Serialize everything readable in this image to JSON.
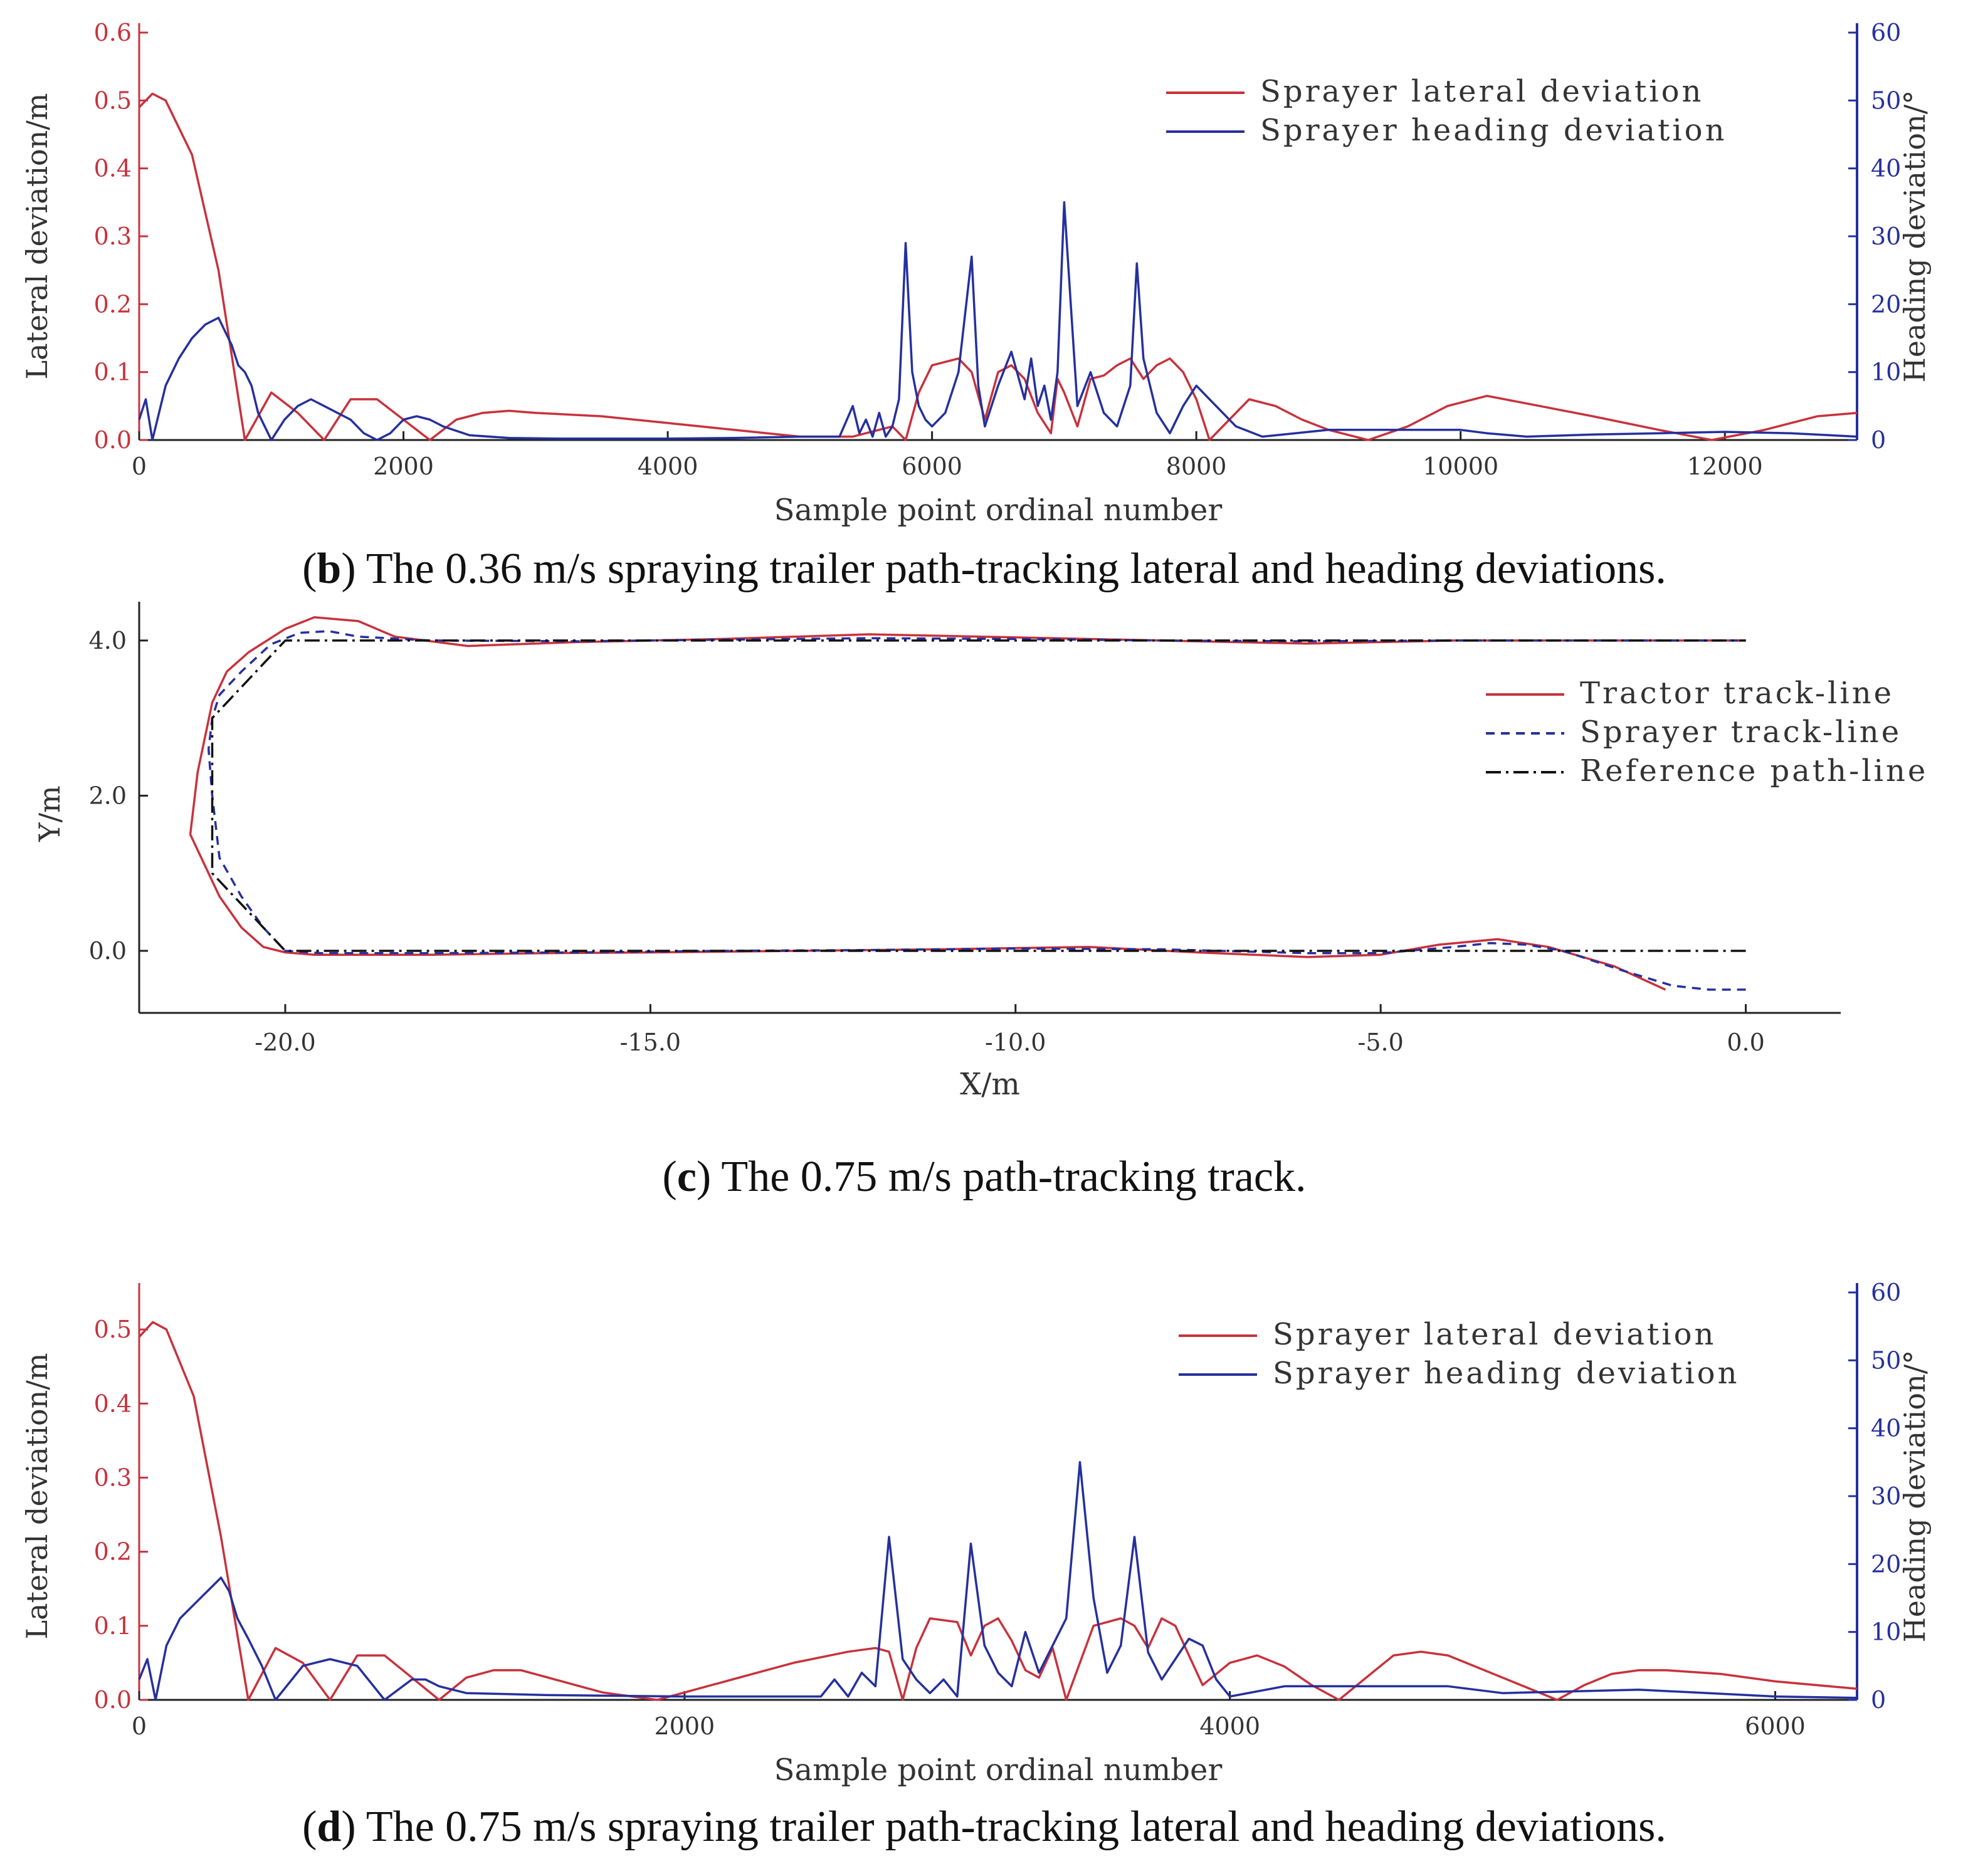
{
  "colors": {
    "lateral": "#c8323c",
    "heading": "#25309e",
    "axis_left": "#c8323c",
    "axis_right": "#25309e",
    "reference": "#111111",
    "text": "#333333"
  },
  "captions": {
    "b": {
      "letter": "b",
      "text": ") The 0.36 m/s spraying trailer path-tracking lateral and heading deviations."
    },
    "c": {
      "letter": "c",
      "text": ") The 0.75 m/s path-tracking track."
    },
    "d": {
      "letter": "d",
      "text": ") The 0.75 m/s spraying trailer path-tracking lateral and heading deviations."
    }
  },
  "chart_data": [
    {
      "id": "b",
      "type": "line",
      "xlabel": "Sample point ordinal number",
      "ylabel_left": "Lateral deviation/m",
      "ylabel_right": "Heading deviation/°",
      "xlim": [
        0,
        13000
      ],
      "xticks": [
        0,
        2000,
        4000,
        6000,
        8000,
        10000,
        12000
      ],
      "ylim_left": [
        0,
        0.6
      ],
      "yticks_left": [
        "0.0",
        "0.1",
        "0.2",
        "0.3",
        "0.4",
        "0.5",
        "0.6"
      ],
      "ylim_right": [
        0,
        60
      ],
      "yticks_right": [
        "0",
        "10",
        "20",
        "30",
        "40",
        "50",
        "60"
      ],
      "legend": [
        "Sprayer lateral deviation",
        "Sprayer heading deviation"
      ],
      "series": [
        {
          "name": "Sprayer lateral deviation",
          "axis": "left",
          "x": [
            0,
            100,
            200,
            400,
            600,
            800,
            1000,
            1200,
            1400,
            1600,
            1800,
            2000,
            2200,
            2400,
            2600,
            2800,
            3000,
            3500,
            4000,
            4500,
            5000,
            5400,
            5700,
            5800,
            5900,
            6000,
            6200,
            6300,
            6400,
            6500,
            6600,
            6700,
            6800,
            6900,
            6950,
            7000,
            7100,
            7200,
            7300,
            7400,
            7500,
            7600,
            7700,
            7800,
            7900,
            8000,
            8100,
            8250,
            8400,
            8600,
            8800,
            9000,
            9300,
            9600,
            9900,
            10200,
            10600,
            11000,
            11500,
            11900,
            12300,
            12700,
            13000
          ],
          "y": [
            0.49,
            0.51,
            0.5,
            0.42,
            0.25,
            0.0,
            0.07,
            0.04,
            0.0,
            0.06,
            0.06,
            0.03,
            0.0,
            0.03,
            0.04,
            0.043,
            0.04,
            0.035,
            0.025,
            0.015,
            0.005,
            0.005,
            0.02,
            0.0,
            0.07,
            0.11,
            0.12,
            0.1,
            0.03,
            0.1,
            0.11,
            0.09,
            0.04,
            0.01,
            0.09,
            0.07,
            0.02,
            0.09,
            0.095,
            0.11,
            0.12,
            0.09,
            0.11,
            0.12,
            0.1,
            0.06,
            0.0,
            0.03,
            0.06,
            0.05,
            0.03,
            0.015,
            0.0,
            0.02,
            0.05,
            0.065,
            0.05,
            0.035,
            0.015,
            0.0,
            0.015,
            0.035,
            0.04
          ]
        },
        {
          "name": "Sprayer heading deviation",
          "axis": "right",
          "x": [
            0,
            50,
            100,
            200,
            300,
            400,
            500,
            600,
            650,
            700,
            750,
            800,
            850,
            900,
            1000,
            1100,
            1200,
            1300,
            1400,
            1500,
            1600,
            1700,
            1800,
            1900,
            2000,
            2100,
            2200,
            2300,
            2500,
            2800,
            3200,
            3600,
            4000,
            4500,
            5000,
            5300,
            5400,
            5450,
            5500,
            5550,
            5600,
            5650,
            5700,
            5750,
            5800,
            5850,
            5900,
            5950,
            6000,
            6100,
            6200,
            6300,
            6350,
            6400,
            6500,
            6600,
            6700,
            6750,
            6800,
            6850,
            6900,
            6950,
            7000,
            7050,
            7100,
            7200,
            7300,
            7400,
            7500,
            7550,
            7600,
            7700,
            7800,
            7900,
            8000,
            8100,
            8300,
            8500,
            9000,
            9500,
            10000,
            10200,
            10500,
            11000,
            11500,
            12000,
            12500,
            13000
          ],
          "y": [
            3,
            6,
            0,
            8,
            12,
            15,
            17,
            18,
            16,
            14,
            11,
            10,
            8,
            4,
            0,
            3,
            5,
            6,
            5,
            4,
            3,
            1,
            0,
            1,
            3,
            3.5,
            3,
            2,
            0.7,
            0.3,
            0.2,
            0.2,
            0.2,
            0.3,
            0.5,
            0.5,
            5,
            1,
            3,
            0.5,
            4,
            0.5,
            2,
            6,
            29,
            10,
            5,
            3,
            2,
            4,
            10,
            27,
            8,
            2,
            8,
            13,
            6,
            12,
            5,
            8,
            3,
            10,
            35,
            20,
            5,
            10,
            4,
            2,
            8,
            26,
            12,
            4,
            1,
            5,
            8,
            6,
            2,
            0.5,
            1.5,
            1.5,
            1.5,
            1,
            0.5,
            0.8,
            1,
            1.2,
            1,
            0.5
          ]
        }
      ]
    },
    {
      "id": "c",
      "type": "line",
      "xlabel": "X/m",
      "ylabel": "Y/m",
      "xlim": [
        -22,
        1.3
      ],
      "xticks": [
        "-20.0",
        "-15.0",
        "-10.0",
        "-5.0",
        "0.0"
      ],
      "ylim": [
        -0.8,
        4.5
      ],
      "yticks": [
        "0.0",
        "2.0",
        "4.0"
      ],
      "legend": [
        "Tractor track-line",
        "Sprayer track-line",
        "Reference path-line"
      ],
      "series": [
        {
          "name": "Tractor track-line",
          "x": [
            -1.1,
            -1.8,
            -2.7,
            -3.4,
            -4.2,
            -5.0,
            -6.0,
            -7.5,
            -9.0,
            -11.0,
            -13.0,
            -15.0,
            -16.5,
            -18.0,
            -19.0,
            -19.6,
            -20.0,
            -20.3,
            -20.6,
            -20.9,
            -21.1,
            -21.3,
            -21.2,
            -21.0,
            -20.8,
            -20.5,
            -20.0,
            -19.6,
            -19.0,
            -18.5,
            -17.5,
            -16.0,
            -14.0,
            -12.0,
            -10.0,
            -8.0,
            -6.0,
            -4.0,
            -2.0,
            0.0
          ],
          "y": [
            -0.5,
            -0.2,
            0.05,
            0.15,
            0.08,
            -0.05,
            -0.08,
            -0.02,
            0.05,
            0.02,
            0.0,
            -0.02,
            -0.03,
            -0.05,
            -0.05,
            -0.05,
            -0.02,
            0.05,
            0.3,
            0.7,
            1.1,
            1.5,
            2.3,
            3.2,
            3.6,
            3.85,
            4.15,
            4.3,
            4.25,
            4.05,
            3.93,
            3.98,
            4.02,
            4.08,
            4.04,
            4.0,
            3.96,
            4.0,
            4.0,
            4.0
          ]
        },
        {
          "name": "Sprayer track-line",
          "x": [
            0.0,
            -0.5,
            -1.0,
            -1.7,
            -2.5,
            -3.0,
            -3.5,
            -4.0,
            -5.0,
            -6.0,
            -8.0,
            -10.0,
            -12.0,
            -14.0,
            -16.0,
            -18.0,
            -19.5,
            -20.0,
            -20.3,
            -20.6,
            -20.9,
            -21.0,
            -21.05,
            -21.0,
            -20.9,
            -20.6,
            -20.2,
            -19.8,
            -19.4,
            -19.0,
            -18.0,
            -16.0,
            -14.0,
            -12.0,
            -10.0,
            -8.0,
            -6.0,
            -4.0,
            -2.0,
            0.0
          ],
          "y": [
            -0.5,
            -0.5,
            -0.45,
            -0.25,
            0.0,
            0.08,
            0.1,
            0.05,
            -0.03,
            -0.03,
            0.02,
            0.03,
            0.01,
            0.0,
            -0.02,
            -0.03,
            -0.03,
            0.0,
            0.3,
            0.7,
            1.2,
            2.0,
            2.6,
            3.0,
            3.3,
            3.6,
            3.95,
            4.1,
            4.12,
            4.05,
            4.0,
            3.99,
            4.01,
            4.03,
            4.02,
            4.0,
            3.99,
            4.0,
            4.0,
            4.0
          ]
        },
        {
          "name": "Reference path-line",
          "x": [
            0.0,
            -20.0,
            -21.0,
            -21.0,
            -20.0,
            0.0
          ],
          "y": [
            0.0,
            0.0,
            1.0,
            3.0,
            4.0,
            4.0
          ]
        }
      ]
    },
    {
      "id": "d",
      "type": "line",
      "xlabel": "Sample point ordinal number",
      "ylabel_left": "Lateral deviation/m",
      "ylabel_right": "Heading deviation/°",
      "xlim": [
        0,
        6300
      ],
      "xticks": [
        0,
        2000,
        4000,
        6000
      ],
      "ylim_left": [
        0,
        0.55
      ],
      "yticks_left": [
        "0.0",
        "0.1",
        "0.2",
        "0.3",
        "0.4",
        "0.5"
      ],
      "ylim_right": [
        0,
        60
      ],
      "yticks_right": [
        "0",
        "10",
        "20",
        "30",
        "40",
        "50",
        "60"
      ],
      "legend": [
        "Sprayer lateral deviation",
        "Sprayer heading deviation"
      ],
      "series": [
        {
          "name": "Sprayer lateral deviation",
          "axis": "left",
          "x": [
            0,
            50,
            100,
            200,
            300,
            400,
            500,
            600,
            700,
            800,
            900,
            1000,
            1100,
            1200,
            1300,
            1400,
            1500,
            1600,
            1700,
            1800,
            1900,
            2000,
            2200,
            2400,
            2600,
            2700,
            2750,
            2800,
            2850,
            2900,
            3000,
            3050,
            3100,
            3150,
            3200,
            3250,
            3300,
            3350,
            3400,
            3500,
            3550,
            3600,
            3650,
            3700,
            3750,
            3800,
            3850,
            3900,
            4000,
            4100,
            4200,
            4300,
            4400,
            4500,
            4600,
            4700,
            4800,
            5000,
            5200,
            5300,
            5400,
            5500,
            5600,
            5800,
            6000,
            6300
          ],
          "y": [
            0.49,
            0.51,
            0.5,
            0.41,
            0.22,
            0.0,
            0.07,
            0.05,
            0.0,
            0.06,
            0.06,
            0.03,
            0.0,
            0.03,
            0.04,
            0.04,
            0.03,
            0.02,
            0.01,
            0.005,
            0.0,
            0.01,
            0.03,
            0.05,
            0.065,
            0.07,
            0.065,
            0.0,
            0.07,
            0.11,
            0.105,
            0.06,
            0.1,
            0.11,
            0.08,
            0.04,
            0.03,
            0.07,
            0.0,
            0.1,
            0.105,
            0.11,
            0.1,
            0.07,
            0.11,
            0.1,
            0.06,
            0.02,
            0.05,
            0.06,
            0.045,
            0.02,
            0.0,
            0.03,
            0.06,
            0.065,
            0.06,
            0.03,
            0.0,
            0.02,
            0.035,
            0.04,
            0.04,
            0.035,
            0.025,
            0.015
          ]
        },
        {
          "name": "Sprayer heading deviation",
          "axis": "right",
          "x": [
            0,
            30,
            60,
            100,
            150,
            200,
            250,
            300,
            330,
            360,
            400,
            450,
            500,
            600,
            700,
            800,
            900,
            1000,
            1050,
            1100,
            1200,
            1500,
            2000,
            2500,
            2550,
            2600,
            2650,
            2700,
            2750,
            2800,
            2850,
            2900,
            2950,
            3000,
            3050,
            3100,
            3150,
            3200,
            3250,
            3300,
            3350,
            3400,
            3450,
            3500,
            3550,
            3600,
            3650,
            3700,
            3750,
            3800,
            3850,
            3900,
            3950,
            4000,
            4200,
            4500,
            4800,
            5000,
            5500,
            6000,
            6300
          ],
          "y": [
            3,
            6,
            0,
            8,
            12,
            14,
            16,
            18,
            16,
            12,
            9,
            5,
            0,
            5,
            6,
            5,
            0,
            3,
            3,
            2,
            1,
            0.7,
            0.5,
            0.5,
            3,
            0.5,
            4,
            2,
            24,
            6,
            3,
            1,
            3,
            0.5,
            23,
            8,
            4,
            2,
            10,
            4,
            8,
            12,
            35,
            15,
            4,
            8,
            24,
            7,
            3,
            6,
            9,
            8,
            3,
            0.5,
            2,
            2,
            2,
            1,
            1.5,
            0.5,
            0.3
          ]
        }
      ]
    }
  ]
}
